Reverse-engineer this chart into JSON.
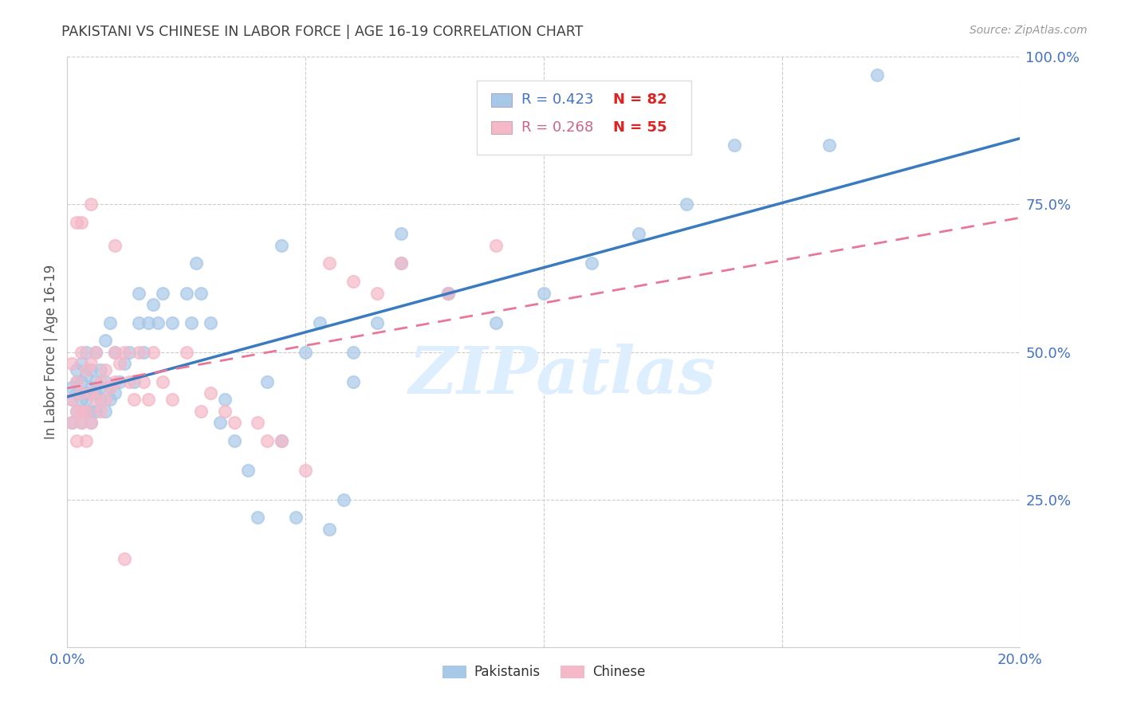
{
  "title": "PAKISTANI VS CHINESE IN LABOR FORCE | AGE 16-19 CORRELATION CHART",
  "source": "Source: ZipAtlas.com",
  "ylabel": "In Labor Force | Age 16-19",
  "pakistani_R": 0.423,
  "pakistani_N": 82,
  "chinese_R": 0.268,
  "chinese_N": 55,
  "blue_color": "#a8c8e8",
  "pink_color": "#f4b8c8",
  "blue_line_color": "#3a7abf",
  "pink_line_color": "#e87898",
  "pink_line_dash": [
    6,
    4
  ],
  "axis_color": "#4472c4",
  "title_color": "#404040",
  "watermark_text": "ZIPatlas",
  "watermark_color": "#ddeeff",
  "xlim": [
    0.0,
    0.2
  ],
  "ylim": [
    0.0,
    1.0
  ],
  "x_ticks": [
    0.0,
    0.05,
    0.1,
    0.15,
    0.2
  ],
  "x_tick_labels": [
    "0.0%",
    "",
    "",
    "",
    "20.0%"
  ],
  "y_ticks_right": [
    0.25,
    0.5,
    0.75,
    1.0
  ],
  "y_tick_labels_right": [
    "25.0%",
    "50.0%",
    "75.0%",
    "100.0%"
  ],
  "pakistani_x": [
    0.001,
    0.001,
    0.001,
    0.002,
    0.002,
    0.002,
    0.002,
    0.003,
    0.003,
    0.003,
    0.003,
    0.003,
    0.004,
    0.004,
    0.004,
    0.004,
    0.004,
    0.005,
    0.005,
    0.005,
    0.005,
    0.005,
    0.006,
    0.006,
    0.006,
    0.006,
    0.007,
    0.007,
    0.007,
    0.008,
    0.008,
    0.008,
    0.009,
    0.009,
    0.009,
    0.01,
    0.01,
    0.011,
    0.012,
    0.013,
    0.014,
    0.015,
    0.015,
    0.016,
    0.017,
    0.018,
    0.019,
    0.02,
    0.022,
    0.025,
    0.026,
    0.027,
    0.028,
    0.03,
    0.032,
    0.033,
    0.035,
    0.038,
    0.04,
    0.042,
    0.045,
    0.048,
    0.05,
    0.053,
    0.055,
    0.058,
    0.06,
    0.065,
    0.07,
    0.08,
    0.09,
    0.1,
    0.11,
    0.12,
    0.13,
    0.14,
    0.045,
    0.06,
    0.07,
    0.08,
    0.16,
    0.17
  ],
  "pakistani_y": [
    0.38,
    0.42,
    0.44,
    0.4,
    0.43,
    0.45,
    0.47,
    0.38,
    0.42,
    0.43,
    0.45,
    0.48,
    0.4,
    0.42,
    0.43,
    0.46,
    0.5,
    0.38,
    0.4,
    0.43,
    0.44,
    0.47,
    0.4,
    0.43,
    0.45,
    0.5,
    0.42,
    0.44,
    0.47,
    0.4,
    0.45,
    0.52,
    0.42,
    0.44,
    0.55,
    0.43,
    0.5,
    0.45,
    0.48,
    0.5,
    0.45,
    0.55,
    0.6,
    0.5,
    0.55,
    0.58,
    0.55,
    0.6,
    0.55,
    0.6,
    0.55,
    0.65,
    0.6,
    0.55,
    0.38,
    0.42,
    0.35,
    0.3,
    0.22,
    0.45,
    0.35,
    0.22,
    0.5,
    0.55,
    0.2,
    0.25,
    0.45,
    0.55,
    0.7,
    0.6,
    0.55,
    0.6,
    0.65,
    0.7,
    0.75,
    0.85,
    0.68,
    0.5,
    0.65,
    0.6,
    0.85,
    0.97
  ],
  "chinese_x": [
    0.001,
    0.001,
    0.001,
    0.002,
    0.002,
    0.002,
    0.003,
    0.003,
    0.003,
    0.003,
    0.004,
    0.004,
    0.004,
    0.005,
    0.005,
    0.005,
    0.006,
    0.006,
    0.007,
    0.007,
    0.008,
    0.008,
    0.009,
    0.01,
    0.01,
    0.011,
    0.012,
    0.013,
    0.014,
    0.015,
    0.016,
    0.017,
    0.018,
    0.02,
    0.022,
    0.025,
    0.028,
    0.03,
    0.033,
    0.035,
    0.04,
    0.042,
    0.045,
    0.05,
    0.055,
    0.06,
    0.065,
    0.07,
    0.08,
    0.09,
    0.002,
    0.003,
    0.005,
    0.01,
    0.012
  ],
  "chinese_y": [
    0.38,
    0.42,
    0.48,
    0.35,
    0.4,
    0.45,
    0.38,
    0.4,
    0.43,
    0.5,
    0.35,
    0.4,
    0.47,
    0.38,
    0.43,
    0.48,
    0.42,
    0.5,
    0.4,
    0.45,
    0.42,
    0.47,
    0.44,
    0.45,
    0.5,
    0.48,
    0.5,
    0.45,
    0.42,
    0.5,
    0.45,
    0.42,
    0.5,
    0.45,
    0.42,
    0.5,
    0.4,
    0.43,
    0.4,
    0.38,
    0.38,
    0.35,
    0.35,
    0.3,
    0.65,
    0.62,
    0.6,
    0.65,
    0.6,
    0.68,
    0.72,
    0.72,
    0.75,
    0.68,
    0.15
  ]
}
